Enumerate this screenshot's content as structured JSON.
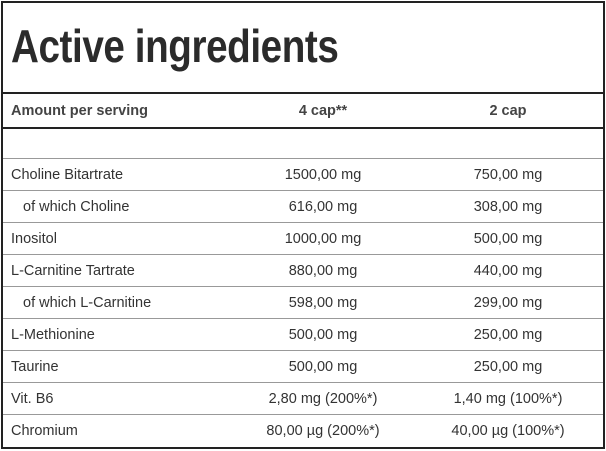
{
  "title": "Active ingredients",
  "table": {
    "header": [
      "Amount per serving",
      "4 cap**",
      "2 cap"
    ],
    "rows": [
      {
        "cells": [
          "Choline Bitartrate",
          "1500,00 mg",
          "750,00 mg"
        ],
        "indent": false
      },
      {
        "cells": [
          "of which Choline",
          "616,00 mg",
          "308,00 mg"
        ],
        "indent": true
      },
      {
        "cells": [
          "Inositol",
          "1000,00 mg",
          "500,00 mg"
        ],
        "indent": false
      },
      {
        "cells": [
          "L-Carnitine Tartrate",
          "880,00 mg",
          "440,00 mg"
        ],
        "indent": false
      },
      {
        "cells": [
          "of which L-Carnitine",
          "598,00 mg",
          "299,00 mg"
        ],
        "indent": true
      },
      {
        "cells": [
          "L-Methionine",
          "500,00 mg",
          "250,00 mg"
        ],
        "indent": false
      },
      {
        "cells": [
          "Taurine",
          "500,00 mg",
          "250,00 mg"
        ],
        "indent": false
      },
      {
        "cells": [
          "Vit. B6",
          "2,80 mg (200%*)",
          "1,40 mg (100%*)"
        ],
        "indent": false
      },
      {
        "cells": [
          "Chromium",
          "80,00 µg (200%*)",
          "40,00 µg (100%*)"
        ],
        "indent": false
      }
    ]
  }
}
